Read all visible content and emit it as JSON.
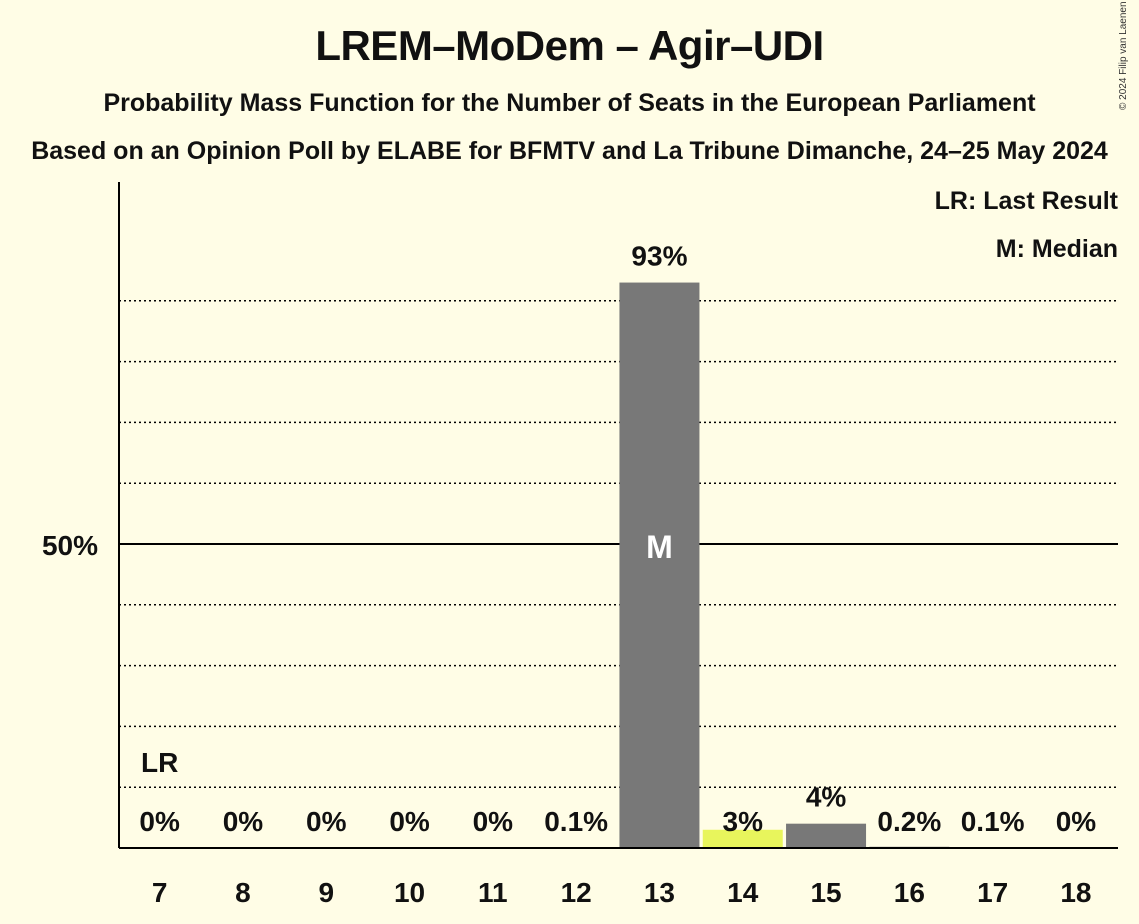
{
  "title": "LREM–MoDem – Agir–UDI",
  "subtitle": "Probability Mass Function for the Number of Seats in the European Parliament",
  "source": "Based on an Opinion Poll by ELABE for BFMTV and La Tribune Dimanche, 24–25 May 2024",
  "copyright": "© 2024 Filip van Laenen",
  "legend": {
    "last_result": "LR: Last Result",
    "median": "M: Median"
  },
  "markers": {
    "last_result_label": "LR",
    "median_label": "M"
  },
  "colors": {
    "background": "#fffde6",
    "bar": "#787878",
    "last_result_bar": "#e8f55c",
    "axis": "#000000"
  },
  "chart_data": {
    "type": "bar",
    "categories": [
      "7",
      "8",
      "9",
      "10",
      "11",
      "12",
      "13",
      "14",
      "15",
      "16",
      "17",
      "18"
    ],
    "values": [
      0,
      0,
      0,
      0,
      0,
      0.1,
      93,
      3,
      4,
      0.2,
      0.1,
      0
    ],
    "value_labels": [
      "0%",
      "0%",
      "0%",
      "0%",
      "0%",
      "0.1%",
      "93%",
      "3%",
      "4%",
      "0.2%",
      "0.1%",
      "0%"
    ],
    "highlight_category": "14",
    "median_category": "13",
    "last_result_category": "7",
    "ylim": [
      0,
      100
    ],
    "y_ticks": [
      {
        "value": 50,
        "label": "50%"
      }
    ],
    "grid_step": 10,
    "grid": true,
    "legend_position": "top-right"
  }
}
